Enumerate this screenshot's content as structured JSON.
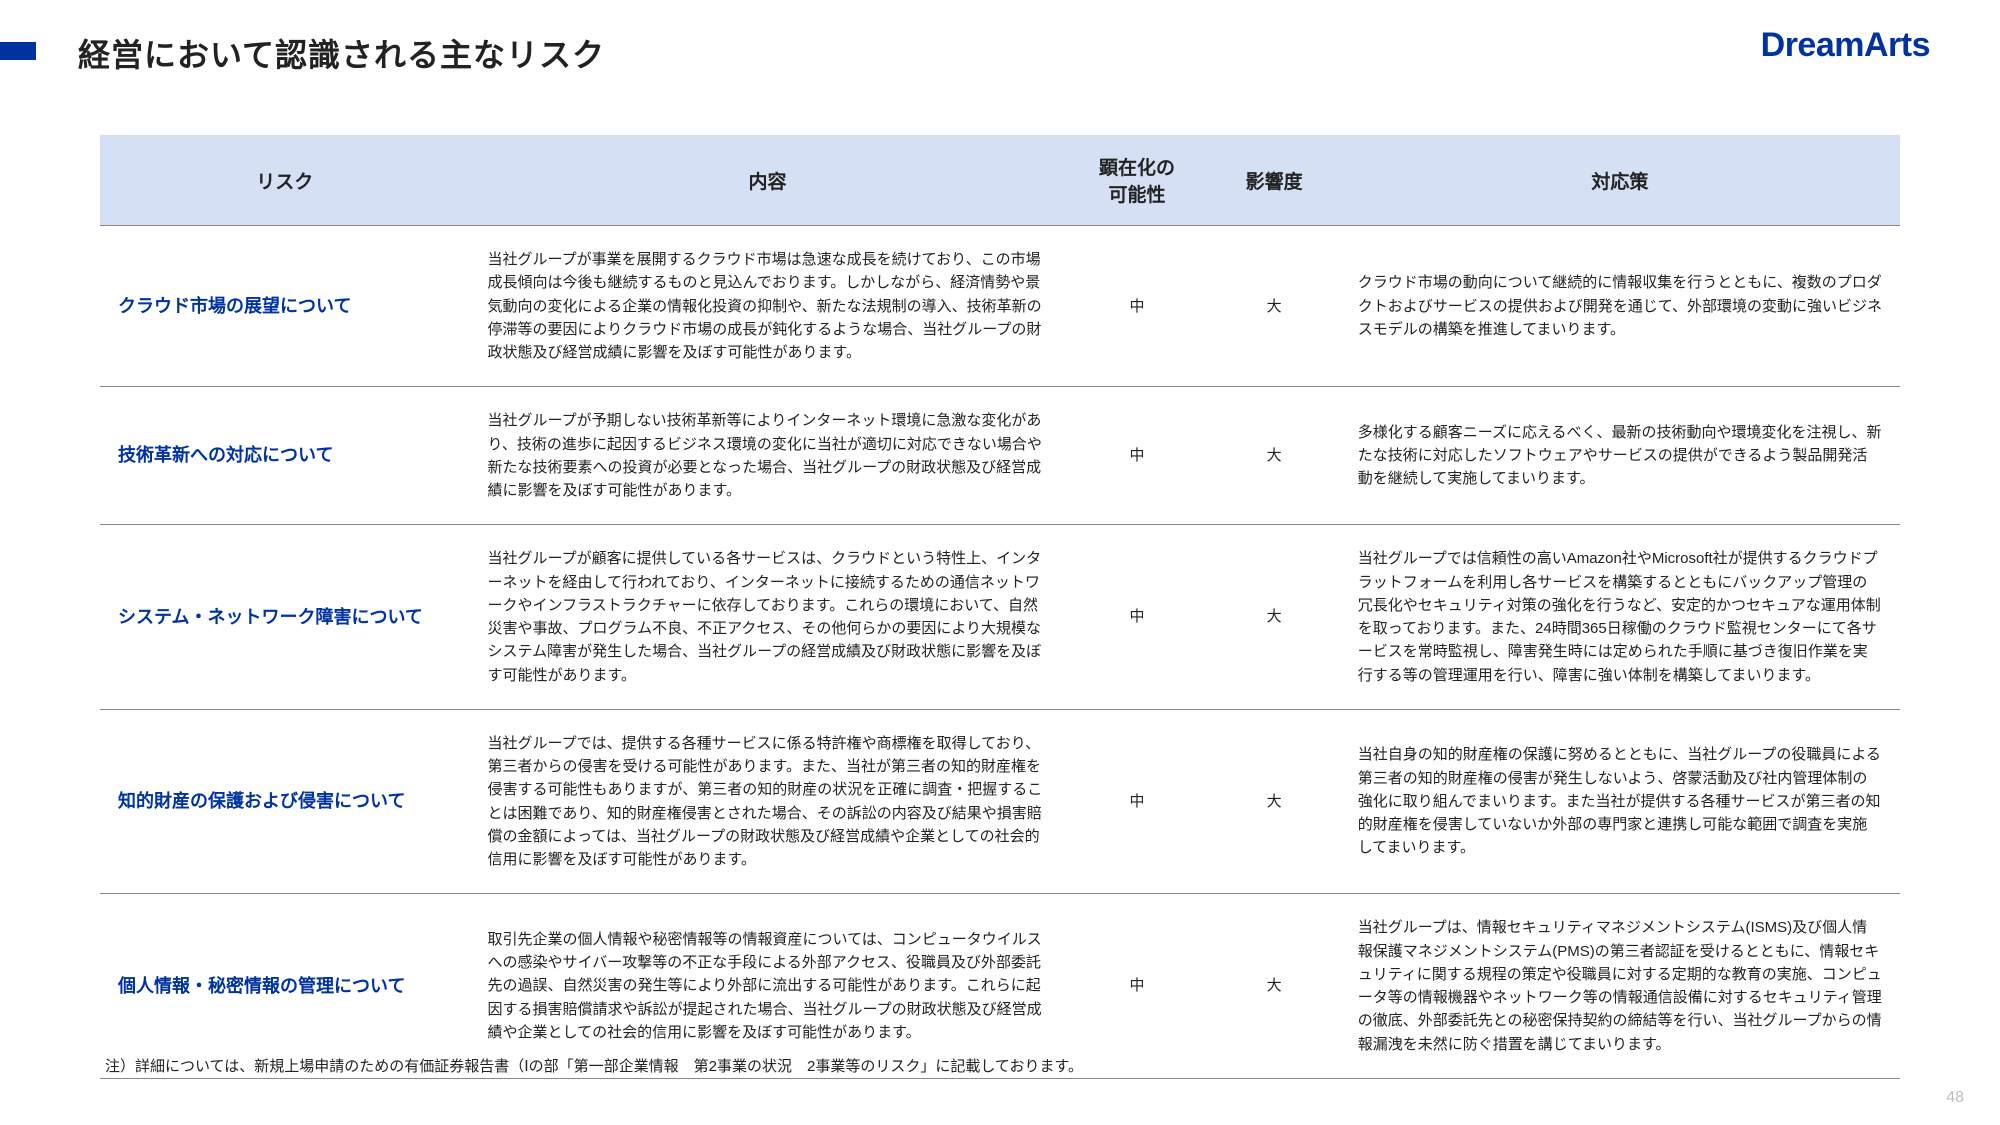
{
  "title": "経営において認識される主なリスク",
  "logo": "DreamArts",
  "columns": [
    "リスク",
    "内容",
    "顕在化の\n可能性",
    "影響度",
    "対応策"
  ],
  "rows": [
    {
      "risk": "クラウド市場の展望について",
      "content": "当社グループが事業を展開するクラウド市場は急速な成長を続けており、この市場成長傾向は今後も継続するものと見込んでおります。しかしながら、経済情勢や景気動向の変化による企業の情報化投資の抑制や、新たな法規制の導入、技術革新の停滞等の要因によりクラウド市場の成長が鈍化するような場合、当社グループの財政状態及び経営成績に影響を及ぼす可能性があります。",
      "prob": "中",
      "impact": "大",
      "measure": "クラウド市場の動向について継続的に情報収集を行うとともに、複数のプロダクトおよびサービスの提供および開発を通じて、外部環境の変動に強いビジネスモデルの構築を推進してまいります。"
    },
    {
      "risk": "技術革新への対応について",
      "content": "当社グループが予期しない技術革新等によりインターネット環境に急激な変化があり、技術の進歩に起因するビジネス環境の変化に当社が適切に対応できない場合や新たな技術要素への投資が必要となった場合、当社グループの財政状態及び経営成績に影響を及ぼす可能性があります。",
      "prob": "中",
      "impact": "大",
      "measure": "多様化する顧客ニーズに応えるべく、最新の技術動向や環境変化を注視し、新たな技術に対応したソフトウェアやサービスの提供ができるよう製品開発活動を継続して実施してまいります。"
    },
    {
      "risk": "システム・ネットワーク障害について",
      "content": "当社グループが顧客に提供している各サービスは、クラウドという特性上、インターネットを経由して行われており、インターネットに接続するための通信ネットワークやインフラストラクチャーに依存しております。これらの環境において、自然災害や事故、プログラム不良、不正アクセス、その他何らかの要因により大規模なシステム障害が発生した場合、当社グループの経営成績及び財政状態に影響を及ぼす可能性があります。",
      "prob": "中",
      "impact": "大",
      "measure": "当社グループでは信頼性の高いAmazon社やMicrosoft社が提供するクラウドプラットフォームを利用し各サービスを構築するとともにバックアップ管理の冗長化やセキュリティ対策の強化を行うなど、安定的かつセキュアな運用体制を取っております。また、24時間365日稼働のクラウド監視センターにて各サービスを常時監視し、障害発生時には定められた手順に基づき復旧作業を実行する等の管理運用を行い、障害に強い体制を構築してまいります。"
    },
    {
      "risk": "知的財産の保護および侵害について",
      "content": "当社グループでは、提供する各種サービスに係る特許権や商標権を取得しており、第三者からの侵害を受ける可能性があります。また、当社が第三者の知的財産権を侵害する可能性もありますが、第三者の知的財産の状況を正確に調査・把握することは困難であり、知的財産権侵害とされた場合、その訴訟の内容及び結果や損害賠償の金額によっては、当社グループの財政状態及び経営成績や企業としての社会的信用に影響を及ぼす可能性があります。",
      "prob": "中",
      "impact": "大",
      "measure": "当社自身の知的財産権の保護に努めるとともに、当社グループの役職員による第三者の知的財産権の侵害が発生しないよう、啓蒙活動及び社内管理体制の強化に取り組んでまいります。また当社が提供する各種サービスが第三者の知的財産権を侵害していないか外部の専門家と連携し可能な範囲で調査を実施してまいります。"
    },
    {
      "risk": "個人情報・秘密情報の管理について",
      "content": "取引先企業の個人情報や秘密情報等の情報資産については、コンピュータウイルスへの感染やサイバー攻撃等の不正な手段による外部アクセス、役職員及び外部委託先の過誤、自然災害の発生等により外部に流出する可能性があります。これらに起因する損害賠償請求や訴訟が提起された場合、当社グループの財政状態及び経営成績や企業としての社会的信用に影響を及ぼす可能性があります。",
      "prob": "中",
      "impact": "大",
      "measure": "当社グループは、情報セキュリティマネジメントシステム(ISMS)及び個人情報保護マネジメントシステム(PMS)の第三者認証を受けるとともに、情報セキュリティに関する規程の策定や役職員に対する定期的な教育の実施、コンピュータ等の情報機器やネットワーク等の情報通信設備に対するセキュリティ管理の徹底、外部委託先との秘密保持契約の締結等を行い、当社グループからの情報漏洩を未然に防ぐ措置を講じてまいります。"
    }
  ],
  "footnote": "注）詳細については、新規上場申請のための有価証券報告書（Ⅰの部「第一部企業情報　第2事業の状況　2事業等のリスク」に記載しております。",
  "page_num": "48"
}
